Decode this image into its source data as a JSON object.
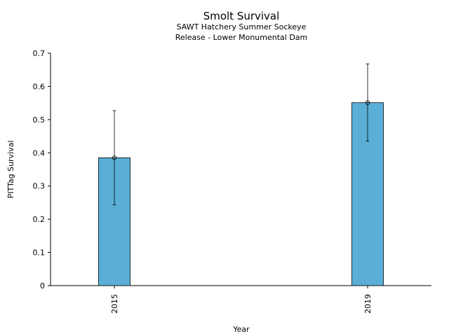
{
  "chart_data": {
    "type": "bar",
    "title": "Smolt Survival",
    "subtitle_lines": [
      "SAWT Hatchery Summer Sockeye",
      "Release - Lower Monumental Dam"
    ],
    "xlabel": "Year",
    "ylabel": "PITTag Survival",
    "categories": [
      "2015",
      "2019"
    ],
    "values": [
      0.385,
      0.551
    ],
    "error_low": [
      0.243,
      0.435
    ],
    "error_high": [
      0.527,
      0.668
    ],
    "ylim": [
      0,
      0.7
    ],
    "yticks": [
      "0",
      "0.1",
      "0.2",
      "0.3",
      "0.4",
      "0.5",
      "0.6",
      "0.7"
    ],
    "bar_color": "#5bafd6",
    "grid": false,
    "legend": "none"
  }
}
